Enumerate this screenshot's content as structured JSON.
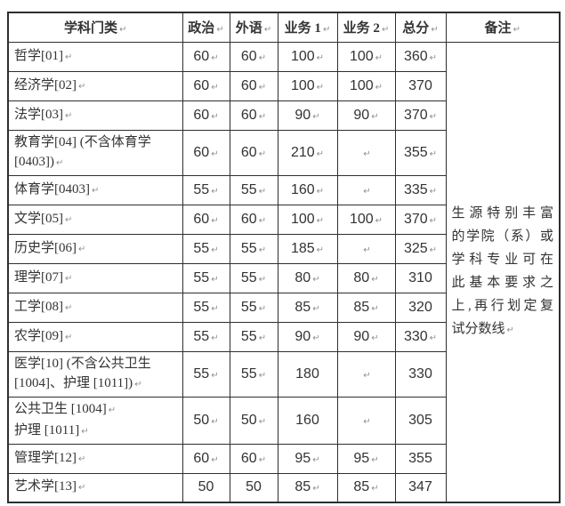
{
  "colors": {
    "border": "#2e2e2e",
    "text": "#333333",
    "mark": "#8f8f8f",
    "background": "#ffffff"
  },
  "return_mark_glyph": "↵",
  "table": {
    "headers": [
      {
        "t": "学科门类",
        "m": true
      },
      {
        "t": "政治",
        "m": true
      },
      {
        "t": "外语",
        "m": true
      },
      {
        "t": "业务 1",
        "m": true
      },
      {
        "t": "业务 2",
        "m": true
      },
      {
        "t": "总分",
        "m": true
      },
      {
        "t": "备注",
        "m": true
      }
    ],
    "rows": [
      {
        "subject": [
          {
            "t": "哲学[01]",
            "m": true
          }
        ],
        "double": false,
        "scores": [
          {
            "v": "60",
            "m": true
          },
          {
            "v": "60",
            "m": true
          },
          {
            "v": "100",
            "m": true
          },
          {
            "v": "100",
            "m": true
          },
          {
            "v": "360",
            "m": true
          }
        ]
      },
      {
        "subject": [
          {
            "t": "经济学[02]",
            "m": true
          }
        ],
        "double": false,
        "scores": [
          {
            "v": "60",
            "m": true
          },
          {
            "v": "60",
            "m": true
          },
          {
            "v": "100",
            "m": true
          },
          {
            "v": "100",
            "m": true
          },
          {
            "v": "370",
            "m": false
          }
        ]
      },
      {
        "subject": [
          {
            "t": "法学[03]",
            "m": true
          }
        ],
        "double": false,
        "scores": [
          {
            "v": "60",
            "m": true
          },
          {
            "v": "60",
            "m": true
          },
          {
            "v": "90",
            "m": true
          },
          {
            "v": "90",
            "m": true
          },
          {
            "v": "370",
            "m": true
          }
        ]
      },
      {
        "subject": [
          {
            "t": "教育学[04] (不含体育学",
            "m": false
          },
          {
            "t": "[0403])",
            "m": true
          }
        ],
        "double": true,
        "scores": [
          {
            "v": "60",
            "m": true
          },
          {
            "v": "60",
            "m": true
          },
          {
            "v": "210",
            "m": true
          },
          {
            "v": "",
            "m": true
          },
          {
            "v": "355",
            "m": true
          }
        ]
      },
      {
        "subject": [
          {
            "t": "体育学[0403]",
            "m": true
          }
        ],
        "double": false,
        "scores": [
          {
            "v": "55",
            "m": true
          },
          {
            "v": "55",
            "m": true
          },
          {
            "v": "160",
            "m": true
          },
          {
            "v": "",
            "m": true
          },
          {
            "v": "335",
            "m": true
          }
        ]
      },
      {
        "subject": [
          {
            "t": "文学[05]",
            "m": true
          }
        ],
        "double": false,
        "scores": [
          {
            "v": "60",
            "m": true
          },
          {
            "v": "60",
            "m": true
          },
          {
            "v": "100",
            "m": true
          },
          {
            "v": "100",
            "m": true
          },
          {
            "v": "370",
            "m": true
          }
        ]
      },
      {
        "subject": [
          {
            "t": "历史学[06]",
            "m": true
          }
        ],
        "double": false,
        "scores": [
          {
            "v": "55",
            "m": true
          },
          {
            "v": "55",
            "m": true
          },
          {
            "v": "185",
            "m": true
          },
          {
            "v": "",
            "m": true
          },
          {
            "v": "325",
            "m": true
          }
        ]
      },
      {
        "subject": [
          {
            "t": "理学[07]",
            "m": true
          }
        ],
        "double": false,
        "scores": [
          {
            "v": "55",
            "m": true
          },
          {
            "v": "55",
            "m": true
          },
          {
            "v": "80",
            "m": true
          },
          {
            "v": "80",
            "m": true
          },
          {
            "v": "310",
            "m": false
          }
        ]
      },
      {
        "subject": [
          {
            "t": "工学[08]",
            "m": true
          }
        ],
        "double": false,
        "scores": [
          {
            "v": "55",
            "m": true
          },
          {
            "v": "55",
            "m": true
          },
          {
            "v": "85",
            "m": true
          },
          {
            "v": "85",
            "m": true
          },
          {
            "v": "320",
            "m": false
          }
        ]
      },
      {
        "subject": [
          {
            "t": "农学[09]",
            "m": true
          }
        ],
        "double": false,
        "scores": [
          {
            "v": "55",
            "m": true
          },
          {
            "v": "55",
            "m": true
          },
          {
            "v": "90",
            "m": true
          },
          {
            "v": "90",
            "m": true
          },
          {
            "v": "330",
            "m": true
          }
        ]
      },
      {
        "subject": [
          {
            "t": "医学[10] (不含公共卫生",
            "m": false
          },
          {
            "t": "[1004]、护理 [1011])",
            "m": true
          }
        ],
        "double": true,
        "scores": [
          {
            "v": "55",
            "m": true
          },
          {
            "v": "55",
            "m": true
          },
          {
            "v": "180",
            "m": false
          },
          {
            "v": "",
            "m": true
          },
          {
            "v": "330",
            "m": false
          }
        ]
      },
      {
        "subject": [
          {
            "t": "公共卫生 [1004]",
            "m": true
          },
          {
            "t": "护理 [1011]",
            "m": true
          }
        ],
        "double": true,
        "scores": [
          {
            "v": "50",
            "m": true
          },
          {
            "v": "50",
            "m": true
          },
          {
            "v": "160",
            "m": false
          },
          {
            "v": "",
            "m": true
          },
          {
            "v": "305",
            "m": false
          }
        ]
      },
      {
        "subject": [
          {
            "t": "管理学[12]",
            "m": true
          }
        ],
        "double": false,
        "scores": [
          {
            "v": "60",
            "m": true
          },
          {
            "v": "60",
            "m": true
          },
          {
            "v": "95",
            "m": true
          },
          {
            "v": "95",
            "m": true
          },
          {
            "v": "355",
            "m": false
          }
        ]
      },
      {
        "subject": [
          {
            "t": "艺术学[13]",
            "m": true
          }
        ],
        "double": false,
        "scores": [
          {
            "v": "50",
            "m": false
          },
          {
            "v": "50",
            "m": false
          },
          {
            "v": "85",
            "m": true
          },
          {
            "v": "85",
            "m": true
          },
          {
            "v": "347",
            "m": false
          }
        ]
      }
    ],
    "remark": {
      "lines": [
        "生源特别丰富",
        "的学院（系）或",
        "学科专业可在",
        "此基本要求之",
        "上,再行划定复",
        "试分数线"
      ],
      "m": true
    }
  }
}
